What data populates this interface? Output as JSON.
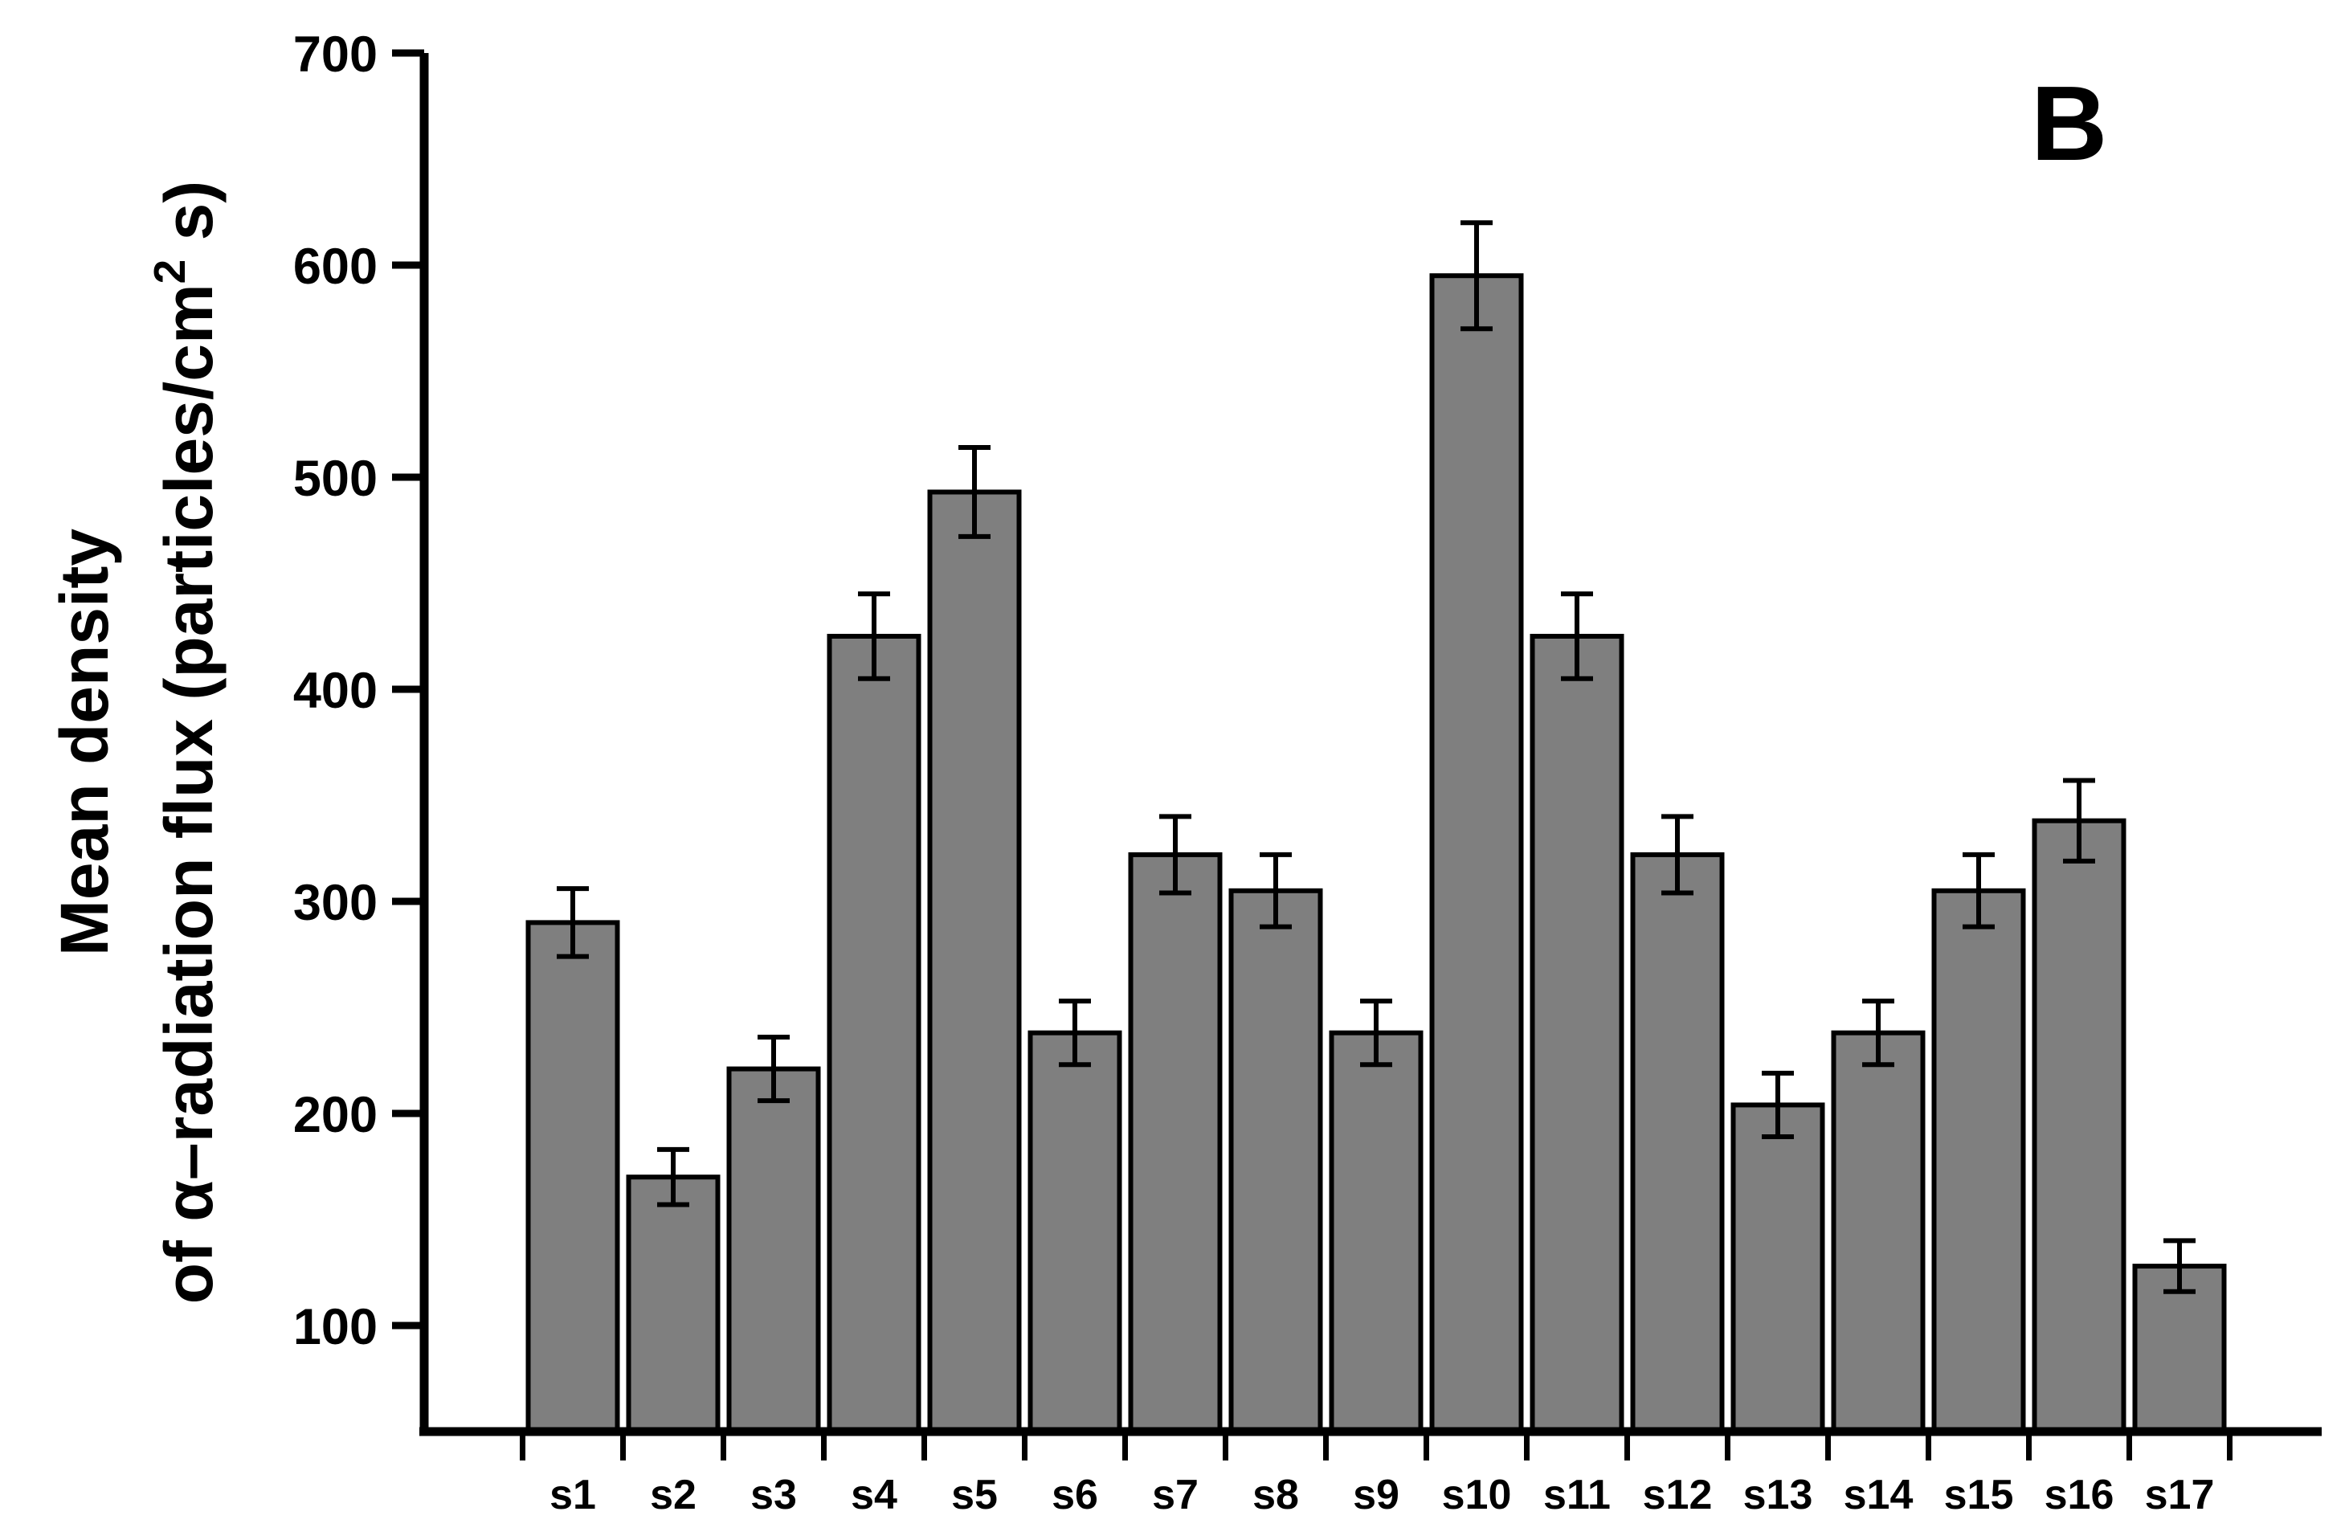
{
  "panel_label": "B",
  "y_axis_title": {
    "line1": "Mean density",
    "line2_pre": "of α–radiation flux (particles/cm",
    "line2_sup": "2",
    "line2_post": " s)"
  },
  "chart_data": {
    "type": "bar",
    "title": "",
    "xlabel": "",
    "ylabel": "Mean density of α–radiation flux (particles/cm2 s)",
    "categories": [
      "s1",
      "s2",
      "s3",
      "s4",
      "s5",
      "s6",
      "s7",
      "s8",
      "s9",
      "s10",
      "s11",
      "s12",
      "s13",
      "s14",
      "s15",
      "s16",
      "s17"
    ],
    "values": [
      290,
      170,
      221,
      425,
      493,
      238,
      322,
      305,
      238,
      595,
      425,
      322,
      204,
      238,
      305,
      338,
      128
    ],
    "errors": [
      16,
      13,
      15,
      20,
      21,
      15,
      18,
      17,
      15,
      25,
      20,
      18,
      15,
      15,
      17,
      19,
      12
    ],
    "ylim": [
      50,
      700
    ],
    "yticks": [
      100,
      200,
      300,
      400,
      500,
      600,
      700
    ],
    "minor_tick_step": 50,
    "grid": false,
    "legend": false,
    "error_bars": true,
    "annotation": "B",
    "bar_color": "#7f7f7f",
    "bar_border_color": "#000000",
    "axis_color": "#000000"
  }
}
